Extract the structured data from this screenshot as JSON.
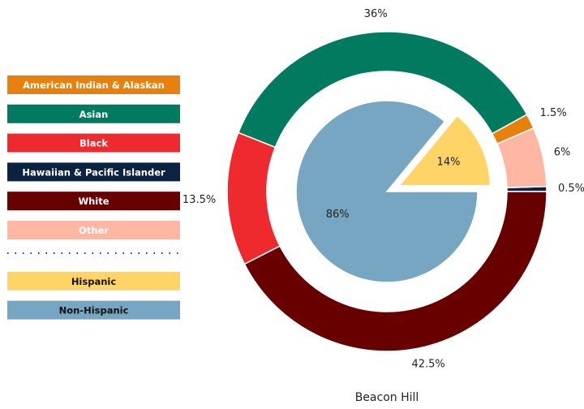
{
  "chart_data": [
    {
      "type": "donut",
      "title": "Beacon Hill",
      "categories": [
        "Hawaiian & Pacific Islander",
        "Other",
        "American Indian & Alaskan",
        "Asian",
        "Black",
        "White"
      ],
      "values": [
        0.5,
        6,
        1.5,
        36,
        13.5,
        42.5
      ],
      "value_labels": [
        "0.5%",
        "6%",
        "1.5%",
        "36%",
        "13.5%",
        "42.5%"
      ],
      "colors": [
        "#0b2341",
        "#ffb7a4",
        "#e8800e",
        "#007b5f",
        "#ef2a2f",
        "#690000"
      ],
      "legend": [
        "American Indian & Alaskan",
        "Asian",
        "Black",
        "Hawaiian & Pacific Islander",
        "White",
        "Other"
      ]
    },
    {
      "type": "pie",
      "categories": [
        "Hispanic",
        "Non-Hispanic"
      ],
      "values": [
        14,
        86
      ],
      "value_labels": [
        "14%",
        "86%"
      ],
      "colors": [
        "#ffd467",
        "#76a6c2"
      ],
      "explode": [
        0.15,
        0
      ],
      "legend": [
        "Hispanic",
        "Non-Hispanic"
      ]
    }
  ]
}
